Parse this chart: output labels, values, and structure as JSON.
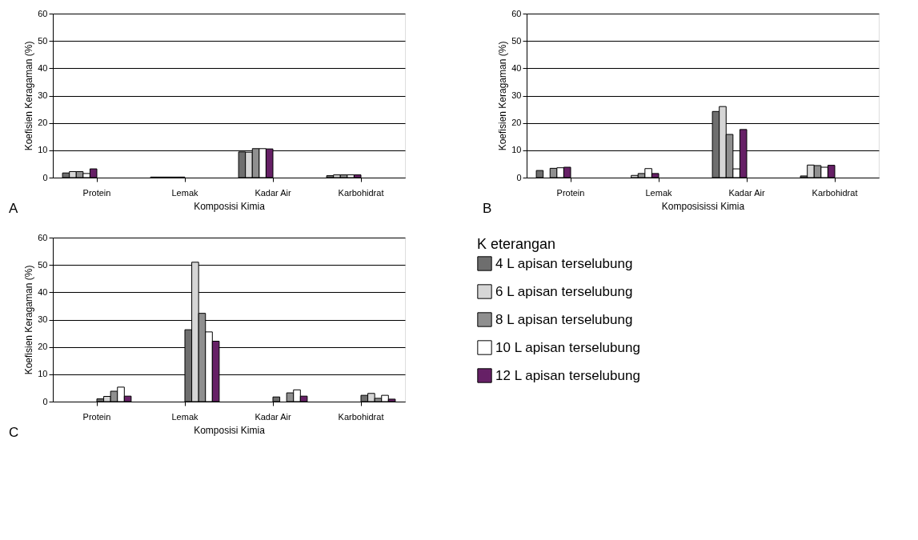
{
  "chart_data": [
    {
      "type": "bar",
      "categories": [
        "Protein",
        "Lemak",
        "Kadar Air",
        "Karbohidrat"
      ],
      "xlabel": "Komposisi Kimia",
      "ylabel": "Koefisien Keragaman (%)",
      "annotations": [
        "A"
      ],
      "ylim": [
        0,
        60
      ],
      "yticks": [
        0,
        10,
        20,
        30,
        40,
        50,
        60
      ],
      "grid": "y",
      "series": [
        {
          "color": "#6e6e6e",
          "values": [
            1.7,
            0.2,
            9.4,
            0.7
          ]
        },
        {
          "color": "#d6d6d6",
          "values": [
            2.2,
            0.2,
            9.3,
            1.0
          ]
        },
        {
          "color": "#8f8f8f",
          "values": [
            2.2,
            0.2,
            10.6,
            1.0
          ]
        },
        {
          "color": "#ffffff",
          "values": [
            1.5,
            0.2,
            10.6,
            1.0
          ]
        },
        {
          "color": "#662066",
          "values": [
            3.2,
            0.2,
            10.5,
            1.0
          ]
        }
      ]
    },
    {
      "type": "bar",
      "categories": [
        "Protein",
        "Lemak",
        "Kadar Air",
        "Karbohidrat"
      ],
      "xlabel": "Komposisissi Kimia",
      "ylabel": "Koefisien Keragaman (%)",
      "annotations": [
        "B"
      ],
      "ylim": [
        0,
        60
      ],
      "yticks": [
        0,
        10,
        20,
        30,
        40,
        50,
        60
      ],
      "grid": "y",
      "series": [
        {
          "color": "#6e6e6e",
          "values": [
            2.6,
            null,
            24.2,
            0.6
          ]
        },
        {
          "color": "#d6d6d6",
          "values": [
            null,
            0.8,
            26.0,
            4.6
          ]
        },
        {
          "color": "#8f8f8f",
          "values": [
            3.4,
            1.5,
            15.8,
            4.4
          ]
        },
        {
          "color": "#ffffff",
          "values": [
            3.6,
            3.3,
            3.2,
            3.8
          ]
        },
        {
          "color": "#662066",
          "values": [
            3.8,
            1.5,
            17.6,
            4.5
          ]
        }
      ]
    },
    {
      "type": "bar",
      "categories": [
        "Protein",
        "Lemak",
        "Kadar Air",
        "Karbohidrat"
      ],
      "xlabel": "Komposisi Kimia",
      "ylabel": "Koefisien Keragaman (%)",
      "annotations": [
        "C"
      ],
      "ylim": [
        0,
        60
      ],
      "yticks": [
        0,
        10,
        20,
        30,
        40,
        50,
        60
      ],
      "grid": "y",
      "legend": "right",
      "legend_title": "K eterangan",
      "series": [
        {
          "name": "4 L apisan terselubung",
          "color": "#6e6e6e",
          "values": [
            1.0,
            26.3,
            1.7,
            2.3
          ]
        },
        {
          "name": "6 L apisan terselubung",
          "color": "#d6d6d6",
          "values": [
            1.9,
            51.0,
            null,
            3.0
          ]
        },
        {
          "name": "8 L apisan terselubung",
          "color": "#8f8f8f",
          "values": [
            3.8,
            32.3,
            3.2,
            1.2
          ]
        },
        {
          "name": "10 L apisan terselubung",
          "color": "#ffffff",
          "values": [
            5.3,
            25.5,
            4.3,
            2.3
          ]
        },
        {
          "name": "12 L apisan terselubung",
          "color": "#662066",
          "values": [
            2.0,
            22.1,
            2.0,
            0.9
          ]
        }
      ]
    }
  ]
}
